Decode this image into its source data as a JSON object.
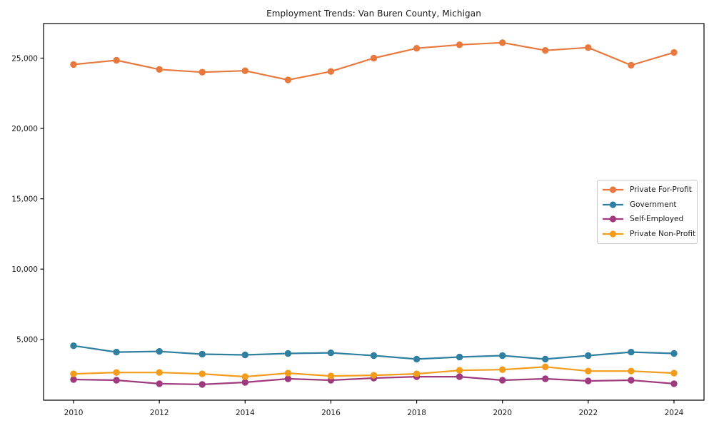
{
  "chart_data": {
    "type": "line",
    "title": "Employment Trends: Van Buren County, Michigan",
    "xlabel": "",
    "ylabel": "",
    "x": [
      2010,
      2011,
      2012,
      2013,
      2014,
      2015,
      2016,
      2017,
      2018,
      2019,
      2020,
      2021,
      2022,
      2023,
      2024
    ],
    "series": [
      {
        "name": "Private For-Profit",
        "color": "#e8793e",
        "values": [
          24550,
          24850,
          24200,
          24000,
          24100,
          23450,
          24050,
          25000,
          25700,
          25950,
          26100,
          25550,
          25750,
          24500,
          25400
        ]
      },
      {
        "name": "Government",
        "color": "#2f80a0",
        "values": [
          4550,
          4100,
          4150,
          3950,
          3900,
          4000,
          4050,
          3850,
          3600,
          3750,
          3850,
          3600,
          3850,
          4100,
          4000
        ]
      },
      {
        "name": "Self-Employed",
        "color": "#a03a7f",
        "values": [
          2150,
          2100,
          1850,
          1800,
          1950,
          2200,
          2100,
          2250,
          2350,
          2350,
          2100,
          2200,
          2050,
          2100,
          1850
        ]
      },
      {
        "name": "Private Non-Profit",
        "color": "#f39c1c",
        "values": [
          2550,
          2650,
          2650,
          2550,
          2350,
          2600,
          2400,
          2450,
          2550,
          2800,
          2850,
          3050,
          2750,
          2750,
          2600
        ]
      }
    ],
    "xtick_values": [
      2010,
      2012,
      2014,
      2016,
      2018,
      2020,
      2022,
      2024
    ],
    "xtick_labels": [
      "2010",
      "2012",
      "2014",
      "2016",
      "2018",
      "2020",
      "2022",
      "2024"
    ],
    "ytick_values": [
      5000,
      10000,
      15000,
      20000,
      25000
    ],
    "ytick_labels": [
      "5,000",
      "10,000",
      "15,000",
      "20,000",
      "25,000"
    ],
    "xlim": [
      2009.3,
      2024.7
    ],
    "ylim": [
      680,
      27460
    ],
    "grid": false,
    "legend_position": "center-right",
    "background": "#ffffff",
    "axis_color": "#000000",
    "text_color": "#1a1a1a",
    "legend_border_color": "#c9c9c9"
  }
}
